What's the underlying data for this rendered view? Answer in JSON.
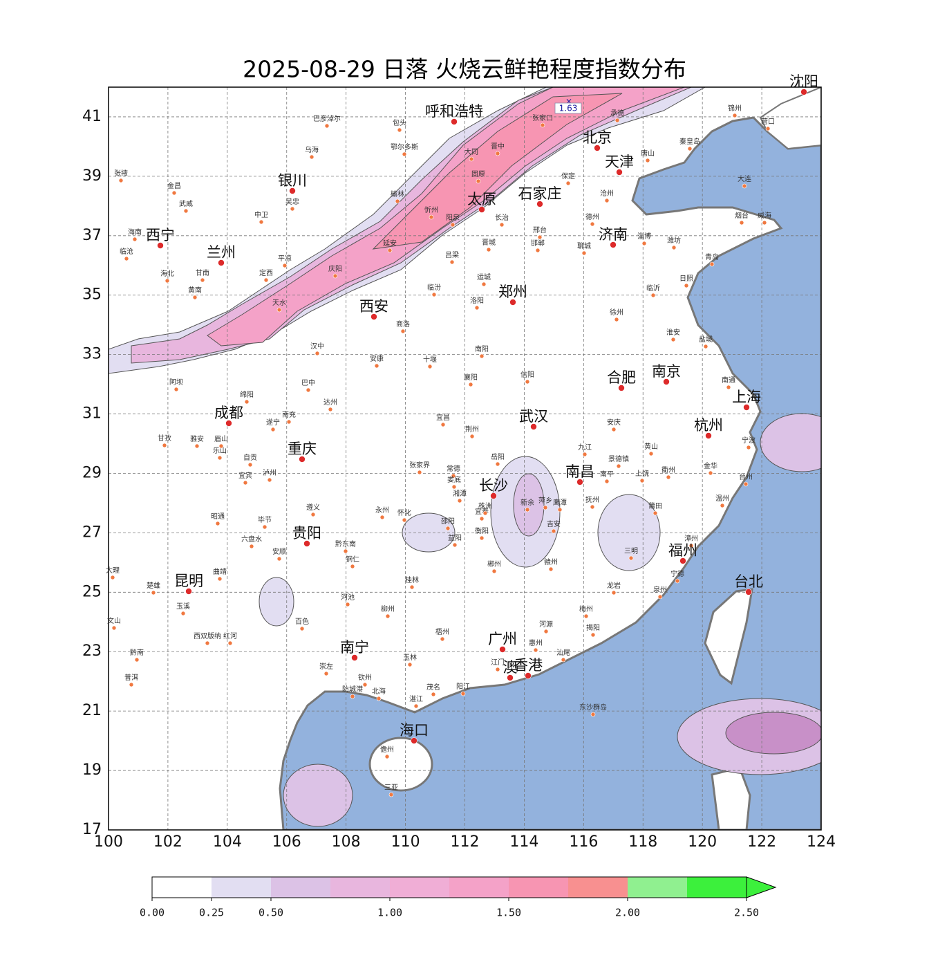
{
  "title": "2025-08-29 日落 火烧云鲜艳程度指数分布",
  "xlim": [
    100,
    124
  ],
  "ylim": [
    17,
    42
  ],
  "xticks": [
    100,
    102,
    104,
    106,
    108,
    110,
    112,
    114,
    116,
    118,
    120,
    122,
    124
  ],
  "yticks": [
    17,
    19,
    21,
    23,
    25,
    27,
    29,
    31,
    33,
    35,
    37,
    39,
    41
  ],
  "grid": true,
  "max_marker": 1.63,
  "major_cities": [
    "沈阳",
    "呼和浩特",
    "北京",
    "天津",
    "银川",
    "太原",
    "石家庄",
    "西宁",
    "兰州",
    "济南",
    "郑州",
    "西安",
    "合肥",
    "南京",
    "成都",
    "武汉",
    "上海",
    "杭州",
    "重庆",
    "长沙",
    "南昌",
    "贵阳",
    "福州",
    "昆明",
    "台北",
    "广州",
    "南宁",
    "澳",
    "香港",
    "海口"
  ],
  "minor_cities": [
    "包头",
    "鄂尔多斯",
    "乌海",
    "巴彦淖尔",
    "张掖",
    "金昌",
    "武威",
    "中卫",
    "吴忠",
    "榆林",
    "延安",
    "庆阳",
    "天水",
    "汉中",
    "安康",
    "十堰",
    "商洛",
    "洛阳",
    "南阳",
    "信阳",
    "襄阳",
    "宜昌",
    "荆州",
    "岳阳",
    "常德",
    "张家界",
    "怀化",
    "邵阳",
    "衡阳",
    "郴州",
    "赣州",
    "吉安",
    "抚州",
    "三明",
    "龙岩",
    "泉州",
    "梅州",
    "达州",
    "南充",
    "遂宁",
    "绵阳",
    "巴中",
    "乐山",
    "宜宾",
    "泸州",
    "遵义",
    "六盘水",
    "安顺",
    "曲靖",
    "大理",
    "楚雄",
    "玉溪",
    "柳州",
    "桂林",
    "梧州",
    "玉林",
    "北海",
    "湛江",
    "茂名",
    "三亚",
    "儋州",
    "东沙群岛",
    "青岛",
    "烟台",
    "威海",
    "日照",
    "临沂",
    "徐州",
    "淮安",
    "盐城",
    "南通",
    "宁波",
    "温州",
    "台州",
    "金华",
    "衢州",
    "黄山",
    "安庆",
    "九江",
    "景德镇",
    "上饶",
    "大连",
    "营口",
    "锦州",
    "秦皇岛",
    "唐山",
    "承德",
    "张家口",
    "保定",
    "沧州",
    "邢台",
    "邯郸",
    "聊城",
    "德州",
    "淄博",
    "潍坊",
    "阿坝",
    "甘孜",
    "雅安",
    "眉山",
    "自贡",
    "昭通",
    "毕节",
    "黔东南",
    "河池",
    "百色",
    "崇左",
    "钦州",
    "防城港",
    "阳江",
    "江门",
    "惠州",
    "河源",
    "汕尾",
    "揭阳",
    "漳州",
    "宁德",
    "莆田",
    "南平",
    "鹰潭",
    "新余",
    "萍乡",
    "宜春",
    "株洲",
    "湘潭",
    "娄底",
    "益阳",
    "永州",
    "铜仁",
    "黔南",
    "普洱",
    "西双版纳",
    "红河",
    "文山",
    "临沧",
    "海南",
    "海北",
    "黄南",
    "甘南",
    "定西",
    "平凉",
    "固原",
    "忻州",
    "吕梁",
    "临汾",
    "运城",
    "晋城",
    "长治",
    "阳泉",
    "晋中",
    "大同",
    "朔州"
  ],
  "colorbar": {
    "levels": [
      0,
      0.25,
      0.5,
      0.75,
      1,
      1.25,
      1.5,
      1.75,
      2,
      2.25,
      2.5
    ],
    "colors": [
      "#ffffff",
      "#e2def2",
      "#dcc2e6",
      "#e8b6de",
      "#f0aed6",
      "#f4a2c8",
      "#f795b2",
      "#f89090",
      "#90f090",
      "#3cf03c"
    ],
    "extend_color": "#3cf03c",
    "ticks": [
      {
        "value": 0,
        "label": "0.00"
      },
      {
        "value": 0.25,
        "label": "0.25"
      },
      {
        "value": 0.5,
        "label": "0.50"
      },
      {
        "value": 1,
        "label": "1.00"
      },
      {
        "value": 1.5,
        "label": "1.50"
      },
      {
        "value": 2,
        "label": "2.00"
      },
      {
        "value": 2.5,
        "label": "2.50"
      }
    ]
  }
}
